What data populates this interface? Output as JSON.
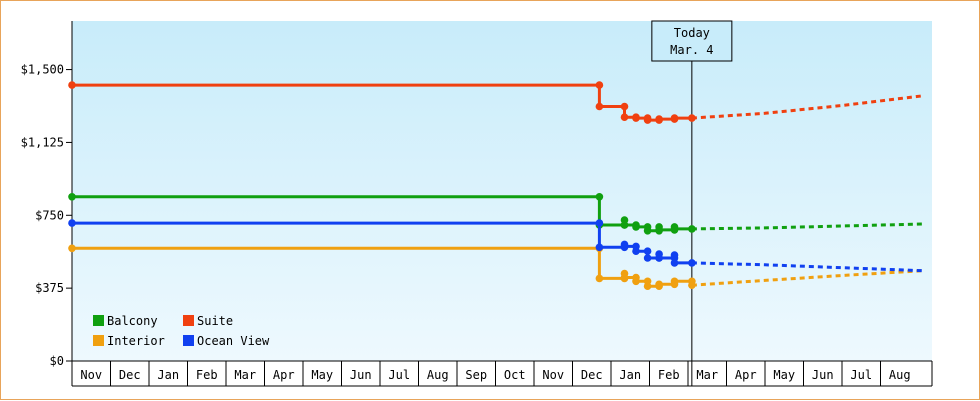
{
  "chart_data": {
    "type": "line",
    "title": "",
    "xlabel": "",
    "ylabel": "",
    "ylim": [
      0,
      1750
    ],
    "y_ticks": [
      {
        "value": 0,
        "label": "$0"
      },
      {
        "value": 375,
        "label": "$375"
      },
      {
        "value": 750,
        "label": "$750"
      },
      {
        "value": 1125,
        "label": "$1,125"
      },
      {
        "value": 1500,
        "label": "$1,500"
      }
    ],
    "x_months": [
      "Nov",
      "Dec",
      "Jan",
      "Feb",
      "Mar",
      "Apr",
      "May",
      "Jun",
      "Jul",
      "Aug",
      "Sep",
      "Oct",
      "Nov",
      "Dec",
      "Jan",
      "Feb",
      "Mar",
      "Apr",
      "May",
      "Jun",
      "Jul",
      "Aug"
    ],
    "today": {
      "line1": "Today",
      "line2": "Mar. 4",
      "x": 16.1
    },
    "grid": false,
    "legend_position": "bottom-left",
    "series": [
      {
        "name": "Balcony",
        "color": "#10a010",
        "history": [
          [
            0,
            845
          ],
          [
            13.7,
            845
          ],
          [
            13.7,
            700
          ],
          [
            14.35,
            700
          ],
          [
            14.35,
            725
          ],
          [
            14.35,
            700
          ],
          [
            14.65,
            700
          ],
          [
            14.65,
            690
          ],
          [
            14.95,
            690
          ],
          [
            14.95,
            670
          ],
          [
            15.25,
            670
          ],
          [
            15.25,
            690
          ],
          [
            15.25,
            675
          ],
          [
            15.65,
            675
          ],
          [
            15.65,
            690
          ],
          [
            15.65,
            680
          ],
          [
            16.1,
            680
          ]
        ],
        "forecast": [
          [
            16.1,
            680
          ],
          [
            18,
            685
          ],
          [
            20,
            695
          ],
          [
            22.1,
            705
          ]
        ]
      },
      {
        "name": "Suite",
        "color": "#f04010",
        "history": [
          [
            0,
            1420
          ],
          [
            13.7,
            1420
          ],
          [
            13.7,
            1310
          ],
          [
            14.35,
            1310
          ],
          [
            14.35,
            1255
          ],
          [
            14.65,
            1255
          ],
          [
            14.65,
            1250
          ],
          [
            14.95,
            1250
          ],
          [
            14.95,
            1240
          ],
          [
            15.25,
            1240
          ],
          [
            15.25,
            1245
          ],
          [
            15.65,
            1245
          ],
          [
            15.65,
            1250
          ],
          [
            16.1,
            1250
          ]
        ],
        "forecast": [
          [
            16.1,
            1250
          ],
          [
            18,
            1275
          ],
          [
            20,
            1315
          ],
          [
            22.1,
            1365
          ]
        ]
      },
      {
        "name": "Interior",
        "color": "#f0a010",
        "history": [
          [
            0,
            580
          ],
          [
            13.7,
            580
          ],
          [
            13.7,
            425
          ],
          [
            14.35,
            425
          ],
          [
            14.35,
            450
          ],
          [
            14.35,
            430
          ],
          [
            14.65,
            430
          ],
          [
            14.65,
            410
          ],
          [
            14.95,
            410
          ],
          [
            14.95,
            385
          ],
          [
            15.25,
            385
          ],
          [
            15.25,
            395
          ],
          [
            15.65,
            395
          ],
          [
            15.65,
            410
          ],
          [
            16.1,
            410
          ],
          [
            16.1,
            390
          ]
        ],
        "forecast": [
          [
            16.1,
            390
          ],
          [
            18,
            415
          ],
          [
            20,
            440
          ],
          [
            22.1,
            465
          ]
        ]
      },
      {
        "name": "Ocean View",
        "color": "#1040f0",
        "history": [
          [
            0,
            710
          ],
          [
            13.7,
            710
          ],
          [
            13.7,
            585
          ],
          [
            14.35,
            585
          ],
          [
            14.35,
            600
          ],
          [
            14.35,
            590
          ],
          [
            14.65,
            590
          ],
          [
            14.65,
            565
          ],
          [
            14.95,
            565
          ],
          [
            14.95,
            530
          ],
          [
            15.25,
            530
          ],
          [
            15.25,
            550
          ],
          [
            15.25,
            530
          ],
          [
            15.65,
            530
          ],
          [
            15.65,
            545
          ],
          [
            15.65,
            505
          ],
          [
            16.1,
            505
          ]
        ],
        "forecast": [
          [
            16.1,
            505
          ],
          [
            18,
            495
          ],
          [
            20,
            480
          ],
          [
            22.1,
            465
          ]
        ]
      }
    ]
  }
}
